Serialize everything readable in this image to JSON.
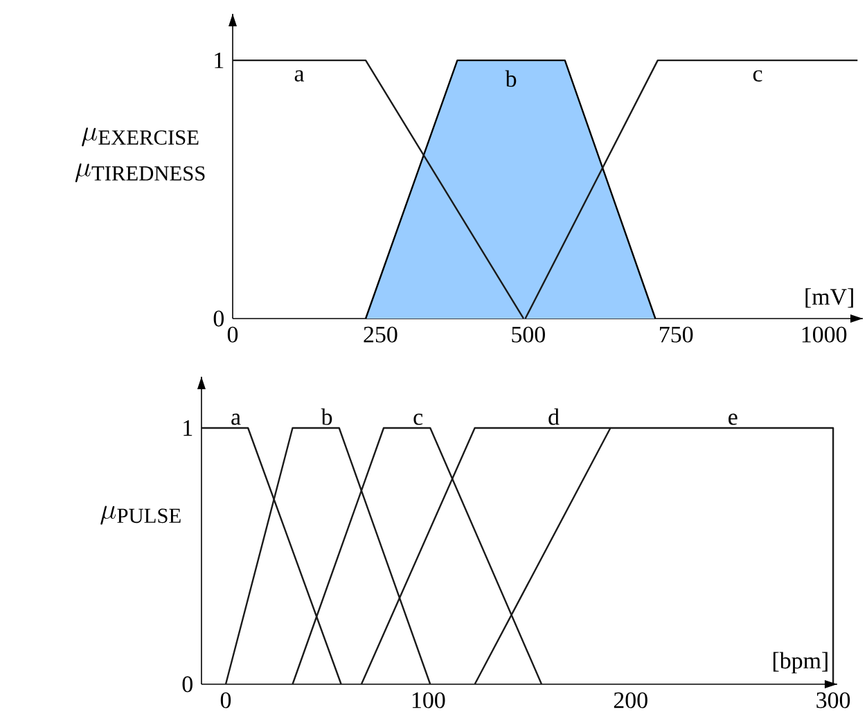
{
  "chart_data": [
    {
      "type": "line",
      "xlabel": "[mV]",
      "ylabel": "\\begin{array}{c}\\mu_{\\mathrm{EXERCISE}}\\\\ \\mu_{\\mathrm{TIREDNESS}}\\end{array}",
      "xlim": [
        0,
        1066
      ],
      "ylim": [
        0,
        1.18
      ],
      "xticks": [
        0,
        250,
        500,
        750,
        1000
      ],
      "yticks": [
        0,
        1
      ],
      "legend": false,
      "grid": false,
      "marker": "none",
      "line_style": "solid",
      "series": [
        {
          "name": "b",
          "type": "area",
          "color": "#99ccff",
          "x": [
            225,
            380,
            562,
            715
          ],
          "values": [
            0,
            1,
            1,
            0
          ]
        },
        {
          "name": "a",
          "color": "#1a1a1a",
          "x": [
            0,
            225,
            492
          ],
          "values": [
            1,
            1,
            0
          ]
        },
        {
          "name": "c",
          "color": "#1a1a1a",
          "x": [
            495,
            719,
            1057
          ],
          "values": [
            0,
            1,
            1
          ]
        }
      ]
    },
    {
      "type": "line",
      "xlabel": "[bpm]",
      "ylabel": "\\mu_{\\mathrm{PULSE}}",
      "xlim": [
        -12,
        302
      ],
      "ylim": [
        0,
        1.2
      ],
      "xticks": [
        0,
        100,
        200,
        300
      ],
      "yticks": [
        0,
        1
      ],
      "legend": false,
      "grid": false,
      "marker": "none",
      "line_style": "solid",
      "series": [
        {
          "name": "a",
          "color": "#1a1a1a",
          "x": [
            -12,
            11,
            57
          ],
          "values": [
            1,
            1,
            0
          ]
        },
        {
          "name": "b",
          "color": "#1a1a1a",
          "x": [
            0,
            33,
            56,
            101
          ],
          "values": [
            0,
            1,
            1,
            0
          ]
        },
        {
          "name": "c",
          "color": "#1a1a1a",
          "x": [
            33,
            78,
            101,
            156
          ],
          "values": [
            0,
            1,
            1,
            0
          ]
        },
        {
          "name": "d",
          "color": "#1a1a1a",
          "x": [
            67,
            123,
            190
          ],
          "values": [
            0,
            1,
            1
          ]
        },
        {
          "name": "e",
          "color": "#1a1a1a",
          "x": [
            123,
            190,
            300,
            300
          ],
          "values": [
            0,
            1,
            1,
            0
          ]
        }
      ]
    }
  ]
}
